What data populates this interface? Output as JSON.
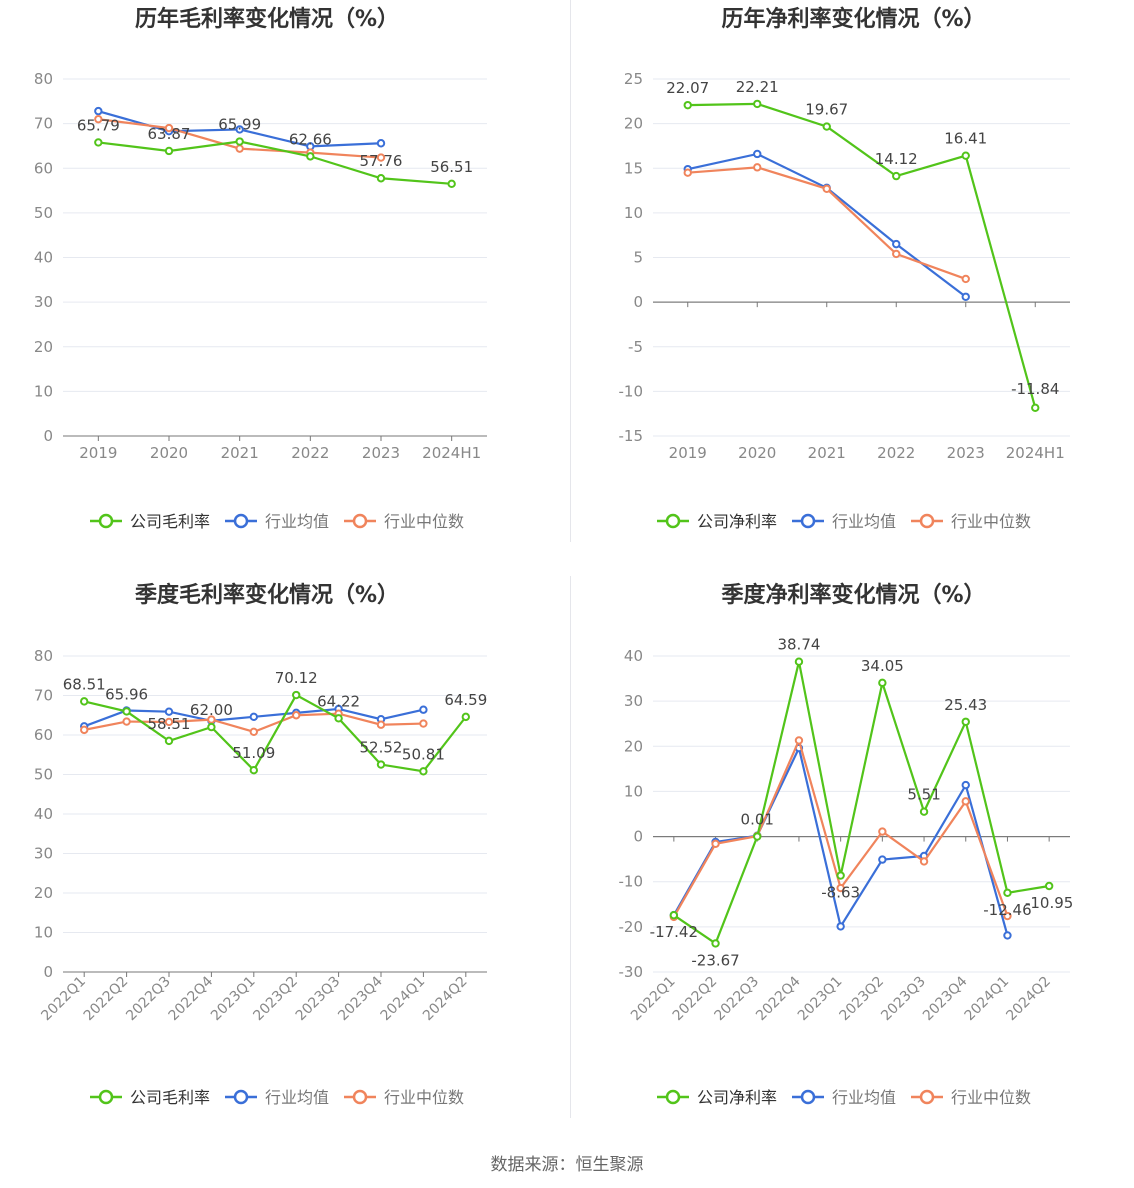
{
  "source_text": "数据来源：恒生聚源",
  "colors": {
    "company": "#52c41a",
    "avg": "#3a6fd8",
    "median": "#f0845c",
    "axis": "#888888",
    "grid": "#e6e9f0",
    "title": "#333333"
  },
  "chart_data": [
    {
      "id": "annual-gross",
      "type": "line",
      "title": "历年毛利率变化情况（%）",
      "categories": [
        "2019",
        "2020",
        "2021",
        "2022",
        "2023",
        "2024H1"
      ],
      "ylim": [
        0,
        80
      ],
      "yticks": [
        0,
        10,
        20,
        30,
        40,
        50,
        60,
        70,
        80
      ],
      "legend": [
        "公司毛利率",
        "行业均值",
        "行业中位数"
      ],
      "series": [
        {
          "name": "公司毛利率",
          "values": [
            65.79,
            63.87,
            65.99,
            62.66,
            57.76,
            56.51
          ],
          "labels": [
            "65.79",
            "63.87",
            "65.99",
            "62.66",
            "57.76",
            "56.51"
          ]
        },
        {
          "name": "行业均值",
          "values": [
            72.8,
            68.3,
            68.7,
            64.9,
            65.6,
            null
          ]
        },
        {
          "name": "行业中位数",
          "values": [
            71.0,
            69.0,
            64.4,
            63.5,
            62.4,
            null
          ]
        }
      ]
    },
    {
      "id": "annual-net",
      "type": "line",
      "title": "历年净利率变化情况（%）",
      "categories": [
        "2019",
        "2020",
        "2021",
        "2022",
        "2023",
        "2024H1"
      ],
      "ylim": [
        -15,
        25
      ],
      "yticks": [
        -15,
        -10,
        -5,
        0,
        5,
        10,
        15,
        20,
        25
      ],
      "legend": [
        "公司净利率",
        "行业均值",
        "行业中位数"
      ],
      "series": [
        {
          "name": "公司净利率",
          "values": [
            22.07,
            22.21,
            19.67,
            14.12,
            16.41,
            -11.84
          ],
          "labels": [
            "22.07",
            "22.21",
            "19.67",
            "14.12",
            "16.41",
            "-11.84"
          ]
        },
        {
          "name": "行业均值",
          "values": [
            14.9,
            16.6,
            12.8,
            6.5,
            0.6,
            null
          ]
        },
        {
          "name": "行业中位数",
          "values": [
            14.5,
            15.1,
            12.7,
            5.4,
            2.6,
            null
          ]
        }
      ]
    },
    {
      "id": "quarterly-gross",
      "type": "line",
      "title": "季度毛利率变化情况（%）",
      "categories": [
        "2022Q1",
        "2022Q2",
        "2022Q3",
        "2022Q4",
        "2023Q1",
        "2023Q2",
        "2023Q3",
        "2023Q4",
        "2024Q1",
        "2024Q2"
      ],
      "ylim": [
        0,
        80
      ],
      "yticks": [
        0,
        10,
        20,
        30,
        40,
        50,
        60,
        70,
        80
      ],
      "legend": [
        "公司毛利率",
        "行业均值",
        "行业中位数"
      ],
      "series": [
        {
          "name": "公司毛利率",
          "values": [
            68.51,
            65.96,
            58.51,
            62.0,
            51.09,
            70.12,
            64.22,
            52.52,
            50.81,
            64.59
          ],
          "labels": [
            "68.51",
            "65.96",
            "58.51",
            "62.00",
            "51.09",
            "70.12",
            "64.22",
            "52.52",
            "50.81",
            "64.59"
          ]
        },
        {
          "name": "行业均值",
          "values": [
            62.2,
            66.2,
            65.9,
            63.6,
            64.6,
            65.6,
            66.6,
            64.0,
            66.4,
            null
          ]
        },
        {
          "name": "行业中位数",
          "values": [
            61.3,
            63.4,
            63.3,
            63.9,
            60.8,
            65.0,
            65.4,
            62.6,
            62.9,
            null
          ]
        }
      ]
    },
    {
      "id": "quarterly-net",
      "type": "line",
      "title": "季度净利率变化情况（%）",
      "categories": [
        "2022Q1",
        "2022Q2",
        "2022Q3",
        "2022Q4",
        "2023Q1",
        "2023Q2",
        "2023Q3",
        "2023Q4",
        "2024Q1",
        "2024Q2"
      ],
      "ylim": [
        -30,
        40
      ],
      "yticks": [
        -30,
        -20,
        -10,
        0,
        10,
        20,
        30,
        40
      ],
      "legend": [
        "公司净利率",
        "行业均值",
        "行业中位数"
      ],
      "series": [
        {
          "name": "公司净利率",
          "values": [
            -17.42,
            -23.67,
            0.01,
            38.74,
            -8.63,
            34.05,
            5.51,
            25.43,
            -12.46,
            -10.95
          ],
          "labels": [
            "-17.42",
            "-23.67",
            "0.01",
            "38.74",
            "-8.63",
            "34.05",
            "5.51",
            "25.43",
            "-12.46",
            "-10.95"
          ]
        },
        {
          "name": "行业均值",
          "values": [
            -17.4,
            -1.2,
            0.2,
            19.6,
            -19.9,
            -5.1,
            -4.3,
            11.4,
            -21.9,
            null
          ]
        },
        {
          "name": "行业中位数",
          "values": [
            -17.8,
            -1.6,
            0.1,
            21.3,
            -11.4,
            1.1,
            -5.5,
            7.8,
            -17.6,
            null
          ]
        }
      ]
    }
  ]
}
